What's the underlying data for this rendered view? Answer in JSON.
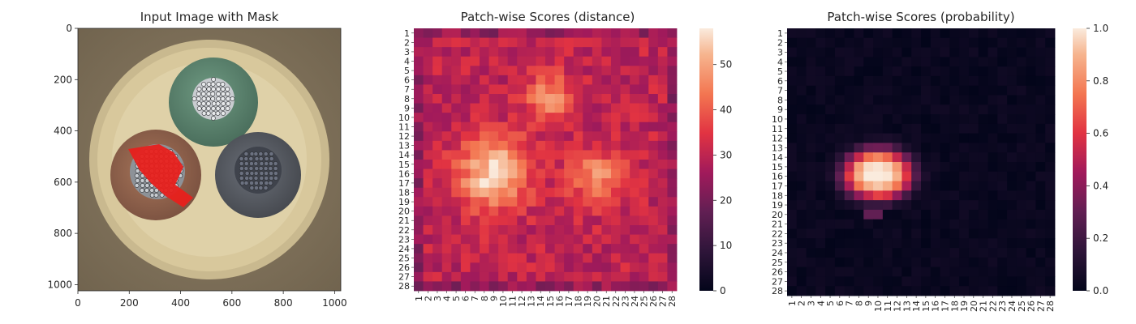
{
  "chart_data": [
    {
      "type": "image",
      "title": "Input Image with Mask",
      "xticks": [
        0,
        200,
        400,
        600,
        800,
        1000
      ],
      "yticks": [
        0,
        200,
        400,
        600,
        800,
        1000
      ],
      "xlim": [
        0,
        1024
      ],
      "ylim": [
        1024,
        0
      ],
      "content": "cable cross-section (3 wires: green, brown, grey) with red anomaly mask",
      "colors": {
        "sheath": "#d9c79a",
        "green_wire": "#5e8a72",
        "brown_wire": "#9c6b4e",
        "grey_wire": "#5d6168",
        "mask": "#e8201c",
        "background": "#8a7b63"
      }
    },
    {
      "type": "heatmap",
      "title": "Patch-wise Scores (distance)",
      "rows": 28,
      "cols": 28,
      "row_labels": [
        "1",
        "2",
        "3",
        "4",
        "5",
        "6",
        "7",
        "8",
        "9",
        "10",
        "11",
        "12",
        "13",
        "14",
        "15",
        "16",
        "17",
        "18",
        "19",
        "20",
        "21",
        "22",
        "23",
        "24",
        "25",
        "26",
        "27",
        "28"
      ],
      "col_labels": [
        "1",
        "2",
        "3",
        "4",
        "5",
        "6",
        "7",
        "8",
        "9",
        "10",
        "11",
        "12",
        "13",
        "14",
        "15",
        "16",
        "17",
        "18",
        "19",
        "20",
        "21",
        "22",
        "23",
        "24",
        "25",
        "26",
        "27",
        "28"
      ],
      "colorbar": {
        "min": 0,
        "max": 58,
        "ticks": [
          0,
          10,
          20,
          30,
          40,
          50
        ]
      },
      "colormap": "rocket",
      "base": 30,
      "hotspots": [
        {
          "row": 16,
          "col": 9,
          "peak": 57,
          "sigma": 2.6
        },
        {
          "row": 8,
          "col": 15,
          "peak": 10,
          "sigma": 1.8
        },
        {
          "row": 16.5,
          "col": 20,
          "peak": 8,
          "sigma": 2.0
        }
      ]
    },
    {
      "type": "heatmap",
      "title": "Patch-wise Scores (probability)",
      "rows": 28,
      "cols": 28,
      "row_labels": [
        "1",
        "2",
        "3",
        "4",
        "5",
        "6",
        "7",
        "8",
        "9",
        "10",
        "11",
        "12",
        "13",
        "14",
        "15",
        "16",
        "17",
        "18",
        "19",
        "20",
        "21",
        "22",
        "23",
        "24",
        "25",
        "26",
        "27",
        "28"
      ],
      "col_labels": [
        "1",
        "2",
        "3",
        "4",
        "5",
        "6",
        "7",
        "8",
        "9",
        "10",
        "11",
        "12",
        "13",
        "14",
        "15",
        "16",
        "17",
        "18",
        "19",
        "20",
        "21",
        "22",
        "23",
        "24",
        "25",
        "26",
        "27",
        "28"
      ],
      "colorbar": {
        "min": 0.0,
        "max": 1.0,
        "ticks": [
          "0.0",
          "0.2",
          "0.4",
          "0.6",
          "0.8",
          "1.0"
        ]
      },
      "colormap": "rocket",
      "hot_region": {
        "rows": [
          13,
          18
        ],
        "cols": [
          6,
          13
        ],
        "peak": 1.0
      }
    }
  ]
}
